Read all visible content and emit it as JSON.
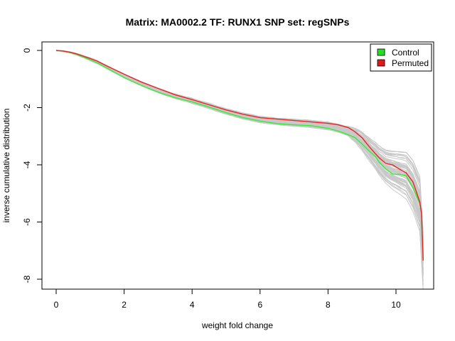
{
  "chart_data": {
    "type": "line",
    "title": "Matrix: MA0002.2 TF: RUNX1 SNP set: regSNPs",
    "xlabel": "weight fold change",
    "ylabel": "inverse cumulative distribution",
    "xlim": [
      0,
      10.9
    ],
    "ylim": [
      -8,
      0.2
    ],
    "xticks": [
      0,
      2,
      4,
      6,
      8,
      10
    ],
    "yticks": [
      0,
      -2,
      -4,
      -6,
      -8
    ],
    "grid": false,
    "legend_position": "top-right",
    "legend": [
      {
        "label": "Control",
        "color": "#22e022"
      },
      {
        "label": "Permuted",
        "color": "#e01a1a"
      }
    ],
    "background_band_color": "#c8c8c8",
    "series": [
      {
        "name": "Control",
        "color": "#33ee33",
        "x": [
          0,
          0.2,
          0.4,
          0.6,
          0.8,
          1.0,
          1.2,
          1.5,
          2.0,
          2.5,
          3.0,
          3.5,
          4.0,
          4.5,
          5.0,
          5.5,
          6.0,
          6.5,
          7.0,
          7.5,
          8.0,
          8.3,
          8.6,
          8.8,
          9.0,
          9.2,
          9.4,
          9.5,
          9.7,
          9.9,
          10.1,
          10.3,
          10.5,
          10.7,
          10.75,
          10.8
        ],
        "y": [
          0,
          -0.02,
          -0.07,
          -0.14,
          -0.23,
          -0.33,
          -0.43,
          -0.62,
          -0.95,
          -1.22,
          -1.46,
          -1.65,
          -1.8,
          -1.98,
          -2.18,
          -2.35,
          -2.47,
          -2.56,
          -2.6,
          -2.63,
          -2.72,
          -2.82,
          -2.95,
          -3.05,
          -3.27,
          -3.5,
          -3.72,
          -3.9,
          -4.15,
          -4.32,
          -4.33,
          -4.38,
          -4.8,
          -5.35,
          -5.7,
          -7.3
        ]
      },
      {
        "name": "Permuted",
        "color": "#ee2222",
        "x": [
          0,
          0.2,
          0.4,
          0.6,
          0.8,
          1.0,
          1.2,
          1.5,
          2.0,
          2.5,
          3.0,
          3.5,
          4.0,
          4.5,
          5.0,
          5.5,
          6.0,
          6.5,
          7.0,
          7.5,
          8.0,
          8.3,
          8.6,
          8.8,
          9.0,
          9.2,
          9.4,
          9.5,
          9.7,
          9.9,
          10.1,
          10.3,
          10.5,
          10.7,
          10.75,
          10.8
        ],
        "y": [
          0,
          -0.02,
          -0.06,
          -0.12,
          -0.2,
          -0.28,
          -0.37,
          -0.55,
          -0.83,
          -1.1,
          -1.33,
          -1.55,
          -1.72,
          -1.9,
          -2.08,
          -2.23,
          -2.35,
          -2.4,
          -2.45,
          -2.5,
          -2.55,
          -2.6,
          -2.7,
          -2.85,
          -3.05,
          -3.35,
          -3.62,
          -3.75,
          -3.95,
          -4.0,
          -4.15,
          -4.28,
          -4.6,
          -5.3,
          -5.7,
          -7.35
        ]
      }
    ]
  }
}
